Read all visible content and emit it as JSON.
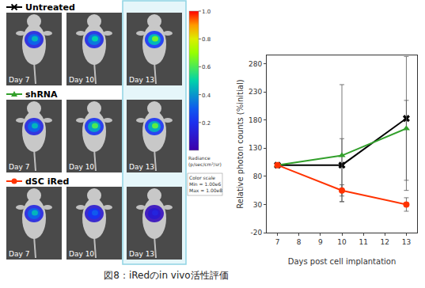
{
  "chart_data": {
    "type": "line",
    "x": [
      7,
      10,
      13
    ],
    "xlim": [
      6.5,
      13.5
    ],
    "xticks": [
      7,
      8,
      9,
      10,
      11,
      12,
      13
    ],
    "ylim": [
      -20,
      295
    ],
    "yticks": [
      -20,
      30,
      80,
      130,
      180,
      230,
      280
    ],
    "x_label": "Days post cell implantation",
    "y_label": "Relative photon counts (%initial)",
    "grid": false,
    "series": [
      {
        "name": "Untreated",
        "color": "#000000",
        "marker": "x",
        "line_style": "solid",
        "values": [
          100,
          100,
          183
        ],
        "error_plus": [
          0,
          143,
          110
        ],
        "error_minus": [
          0,
          65,
          110
        ]
      },
      {
        "name": "shRNA",
        "color": "#33a02c",
        "marker": "triangle",
        "line_style": "solid",
        "values": [
          100,
          117,
          165
        ],
        "error_plus": [
          0,
          30,
          50
        ],
        "error_minus": [
          0,
          82,
          110
        ]
      },
      {
        "name": "dSC iRed",
        "color": "#ff3300",
        "marker": "circle",
        "line_style": "solid",
        "values": [
          100,
          55,
          30
        ],
        "error_plus": [
          0,
          10,
          12
        ],
        "error_minus": [
          0,
          10,
          12
        ]
      }
    ]
  },
  "figure": {
    "images": {
      "days": [
        "Day 7",
        "Day 10",
        "Day 13"
      ],
      "signal": [
        [
          0.45,
          0.5,
          0.65
        ],
        [
          0.45,
          0.6,
          0.62
        ],
        [
          0.45,
          0.3,
          0.15
        ]
      ]
    },
    "colorbar": {
      "range": [
        0,
        1
      ],
      "ticks": [
        {
          "value": 1,
          "label": "1.0"
        },
        {
          "value": 0.8,
          "label": "0.8"
        },
        {
          "value": 0.6,
          "label": "0.6"
        },
        {
          "value": 0.4,
          "label": "0.4"
        },
        {
          "value": 0.2,
          "label": "0.2"
        }
      ],
      "title": [
        "Radiance",
        "(p/sec/cm²/sr)"
      ],
      "scale_box": [
        "Color scale",
        "Min = 1.00e6",
        "Max = 1.00e8"
      ]
    },
    "caption": "図8：iRedのin vivo活性評価"
  }
}
